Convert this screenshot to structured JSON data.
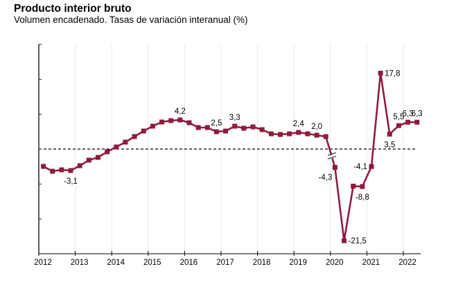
{
  "title": "Producto interior bruto",
  "subtitle": "Volumen encadenado. Tasas de variación interanual (%)",
  "colors": {
    "series": "#8e1b3b",
    "axis": "#000000",
    "grid": "#e3eaf5",
    "zero_line": "#000000"
  },
  "chart_data": {
    "type": "line",
    "title": "Producto interior bruto",
    "subtitle": "Volumen encadenado. Tasas de variación interanual (%)",
    "xlabel": "",
    "ylabel": "",
    "x_tick_labels": [
      "2012",
      "2013",
      "2014",
      "2015",
      "2016",
      "2017",
      "2018",
      "2019",
      "2020",
      "2021",
      "2022"
    ],
    "grid": "vertical gridlines at year ticks",
    "zero_line": "dashed",
    "axis_break": "between 2019 Q4 and 2020 Q1 (scale changes after break)",
    "ylim_before_break": [
      -15,
      15
    ],
    "ylim_after_break": [
      -24.6,
      24.6
    ],
    "series": [
      {
        "name": "PIB",
        "x": [
          "2012T1",
          "2012T2",
          "2012T3",
          "2012T4",
          "2013T1",
          "2013T2",
          "2013T3",
          "2013T4",
          "2014T1",
          "2014T2",
          "2014T3",
          "2014T4",
          "2015T1",
          "2015T2",
          "2015T3",
          "2015T4",
          "2016T1",
          "2016T2",
          "2016T3",
          "2016T4",
          "2017T1",
          "2017T2",
          "2017T3",
          "2017T4",
          "2018T1",
          "2018T2",
          "2018T3",
          "2018T4",
          "2019T1",
          "2019T2",
          "2019T3",
          "2019T4",
          "2020T1",
          "2020T2",
          "2020T3",
          "2020T4",
          "2021T1",
          "2021T2",
          "2021T3",
          "2021T4",
          "2022T1",
          "2022T2"
        ],
        "values": [
          -2.5,
          -3.2,
          -3.0,
          -3.1,
          -2.4,
          -1.6,
          -1.2,
          -0.4,
          0.3,
          1.0,
          1.8,
          2.6,
          3.3,
          3.9,
          4.1,
          4.2,
          3.8,
          3.1,
          3.1,
          2.5,
          2.6,
          3.3,
          3.0,
          3.2,
          2.8,
          2.2,
          2.1,
          2.2,
          2.4,
          2.2,
          2.0,
          1.8,
          -4.3,
          -21.5,
          -8.7,
          -8.8,
          -4.1,
          17.8,
          3.5,
          5.5,
          6.3,
          6.3
        ]
      }
    ],
    "data_labels": [
      {
        "index": 3,
        "text": "-3,1",
        "pos": "below"
      },
      {
        "index": 15,
        "text": "4,2",
        "pos": "above"
      },
      {
        "index": 19,
        "text": "2,5",
        "pos": "above"
      },
      {
        "index": 21,
        "text": "3,3",
        "pos": "above"
      },
      {
        "index": 28,
        "text": "2,4",
        "pos": "above"
      },
      {
        "index": 30,
        "text": "2,0",
        "pos": "above"
      },
      {
        "index": 32,
        "text": "-4,3",
        "pos": "below-left"
      },
      {
        "index": 33,
        "text": "-21,5",
        "pos": "right"
      },
      {
        "index": 35,
        "text": "-8,8",
        "pos": "below"
      },
      {
        "index": 36,
        "text": "-4,1",
        "pos": "left"
      },
      {
        "index": 37,
        "text": "17,8",
        "pos": "right"
      },
      {
        "index": 38,
        "text": "3,5",
        "pos": "below"
      },
      {
        "index": 39,
        "text": "5,5",
        "pos": "above"
      },
      {
        "index": 40,
        "text": "6,3",
        "pos": "above"
      },
      {
        "index": 41,
        "text": "6,3",
        "pos": "above"
      }
    ]
  }
}
